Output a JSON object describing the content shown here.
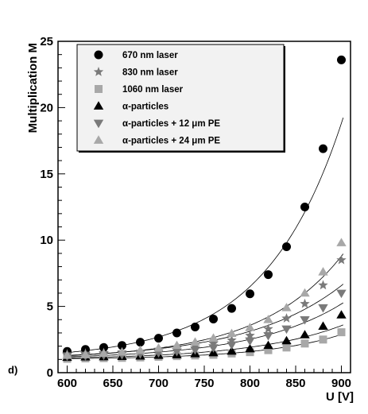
{
  "chart_data": {
    "type": "scatter",
    "panel_label": "d)",
    "xlabel": "U [V]",
    "ylabel": "Multiplication M",
    "xlim": [
      590,
      910
    ],
    "ylim": [
      0,
      25
    ],
    "xticks": [
      600,
      650,
      700,
      750,
      800,
      850,
      900
    ],
    "yticks": [
      0,
      5,
      10,
      15,
      20,
      25
    ],
    "grid": false,
    "legend_position": "top-left",
    "fit_curves": true,
    "x": [
      600,
      620,
      640,
      660,
      680,
      700,
      720,
      740,
      760,
      780,
      800,
      820,
      840,
      860,
      880,
      900
    ],
    "series": [
      {
        "name": "670 nm laser",
        "marker": "circle",
        "color": "#000000",
        "values": [
          1.6,
          1.75,
          1.9,
          2.05,
          2.3,
          2.6,
          3.0,
          3.45,
          4.05,
          4.85,
          5.95,
          7.4,
          9.5,
          12.5,
          16.9,
          23.6
        ]
      },
      {
        "name": "830 nm laser",
        "marker": "star",
        "color": "#7a7a7a",
        "values": [
          1.4,
          1.45,
          1.5,
          1.55,
          1.6,
          1.75,
          1.85,
          2.0,
          2.2,
          2.45,
          2.8,
          3.3,
          4.1,
          5.2,
          6.6,
          8.5
        ]
      },
      {
        "name": "1060 nm laser",
        "marker": "square",
        "color": "#a8a8a8",
        "values": [
          1.05,
          1.08,
          1.1,
          1.12,
          1.15,
          1.2,
          1.25,
          1.3,
          1.35,
          1.45,
          1.55,
          1.7,
          1.9,
          2.2,
          2.5,
          3.05
        ]
      },
      {
        "name": "α-particles",
        "marker": "triangle-up",
        "color": "#000000",
        "values": [
          1.15,
          1.18,
          1.2,
          1.22,
          1.25,
          1.3,
          1.35,
          1.42,
          1.5,
          1.62,
          1.8,
          2.05,
          2.4,
          2.85,
          3.5,
          4.35
        ]
      },
      {
        "name": "α-particles + 12 μm PE",
        "marker": "triangle-down",
        "color": "#7a7a7a",
        "values": [
          1.25,
          1.28,
          1.32,
          1.36,
          1.42,
          1.5,
          1.6,
          1.72,
          1.88,
          2.1,
          2.4,
          2.8,
          3.3,
          4.0,
          4.9,
          6.0
        ]
      },
      {
        "name": "α-particles + 24 μm PE",
        "marker": "triangle-up",
        "color": "#a8a8a8",
        "values": [
          1.3,
          1.35,
          1.45,
          1.55,
          1.68,
          1.85,
          2.05,
          2.3,
          2.6,
          2.95,
          3.4,
          4.0,
          4.9,
          6.0,
          7.6,
          9.8
        ]
      }
    ]
  }
}
